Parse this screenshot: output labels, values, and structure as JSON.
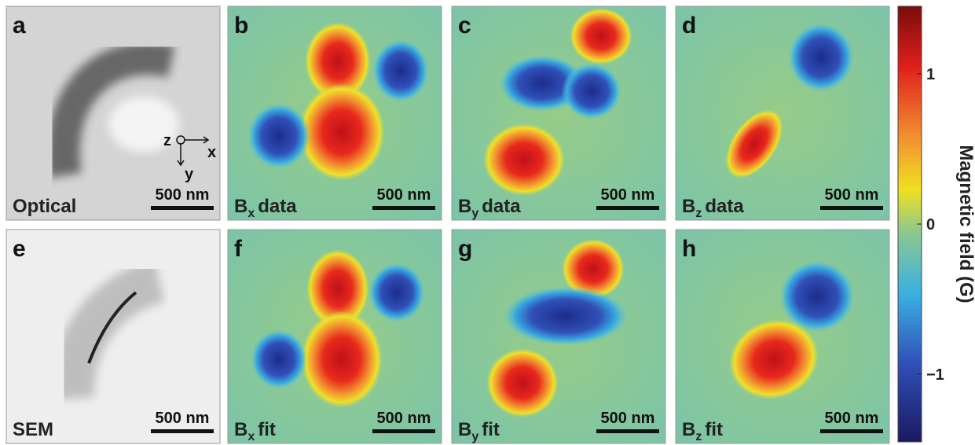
{
  "panels": [
    {
      "letter": "a",
      "caption": "Optical",
      "scalebar": "500 nm",
      "axis_labels": [
        "z",
        "x",
        "y"
      ]
    },
    {
      "letter": "b",
      "caption": {
        "symbol": "B",
        "sub": "x",
        "text": "data"
      },
      "scalebar": "500 nm"
    },
    {
      "letter": "c",
      "caption": {
        "symbol": "B",
        "sub": "y",
        "text": "data"
      },
      "scalebar": "500 nm"
    },
    {
      "letter": "d",
      "caption": {
        "symbol": "B",
        "sub": "z",
        "text": "data"
      },
      "scalebar": "500 nm"
    },
    {
      "letter": "e",
      "caption": "SEM",
      "scalebar": "500 nm"
    },
    {
      "letter": "f",
      "caption": {
        "symbol": "B",
        "sub": "x",
        "text": "fit"
      },
      "scalebar": "500 nm"
    },
    {
      "letter": "g",
      "caption": {
        "symbol": "B",
        "sub": "y",
        "text": "fit"
      },
      "scalebar": "500 nm"
    },
    {
      "letter": "h",
      "caption": {
        "symbol": "B",
        "sub": "z",
        "text": "fit"
      },
      "scalebar": "500 nm"
    }
  ],
  "colorbar": {
    "label": "Magnetic field (G)",
    "lim": [
      -1.45,
      1.45
    ],
    "ticks": [
      1,
      0,
      {
        "value": -1,
        "label": "−1"
      }
    ]
  }
}
